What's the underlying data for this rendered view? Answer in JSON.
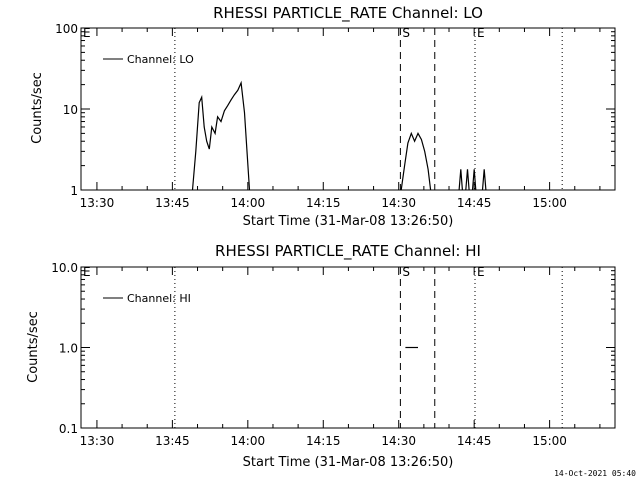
{
  "footer": {
    "timestamp": "14-Oct-2021 05:40"
  },
  "chart_data": [
    {
      "type": "line",
      "title": "RHESSI PARTICLE_RATE Channel: LO",
      "xlabel": "Start Time (31-Mar-08 13:26:50)",
      "ylabel": "Counts/sec",
      "yscale": "log",
      "ylim": [
        1,
        100
      ],
      "xlim": [
        "13:26:50",
        "15:13:00"
      ],
      "x_ticks": [
        "13:30",
        "13:45",
        "14:00",
        "14:15",
        "14:30",
        "14:45",
        "15:00"
      ],
      "y_ticks": [
        "1",
        "10",
        "100"
      ],
      "legend": {
        "placement": "top-left",
        "entries": [
          "Channel: LO"
        ]
      },
      "grid": false,
      "markers": [
        {
          "label": "E",
          "time": "13:26:50",
          "style": "none"
        },
        {
          "label": "",
          "time": "13:45:30",
          "style": "dotted"
        },
        {
          "label": "S",
          "time": "14:30:20",
          "style": "dashed"
        },
        {
          "label": "",
          "time": "14:37:10",
          "style": "dashed"
        },
        {
          "label": "E",
          "time": "14:45:10",
          "style": "dotted"
        },
        {
          "label": "",
          "time": "15:02:30",
          "style": "dotted"
        }
      ],
      "series": [
        {
          "name": "Channel: LO",
          "segments": [
            {
              "x": [
                "13:49:00",
                "13:49:40",
                "13:50:20",
                "13:50:50",
                "13:51:20",
                "13:51:50",
                "13:52:20",
                "13:52:50",
                "13:53:30",
                "13:54:00",
                "13:54:40",
                "13:55:20",
                "13:56:00",
                "13:56:40",
                "13:57:20",
                "13:58:00",
                "13:58:40",
                "13:59:20",
                "13:59:50",
                "14:00:20"
              ],
              "values": [
                1,
                3,
                12,
                14,
                6,
                4,
                3.2,
                6,
                5,
                8,
                7,
                9.5,
                11,
                13,
                15,
                17,
                21,
                9,
                3,
                1
              ]
            },
            {
              "x": [
                "14:30:30",
                "14:31:10",
                "14:31:50",
                "14:32:30",
                "14:33:10",
                "14:33:50",
                "14:34:30",
                "14:35:10",
                "14:35:50",
                "14:36:20"
              ],
              "values": [
                1,
                2,
                3.8,
                5,
                4,
                5,
                4.2,
                3,
                1.8,
                1
              ]
            },
            {
              "x": [
                "14:42:00",
                "14:42:20",
                "14:42:40"
              ],
              "values": [
                1,
                1.8,
                1
              ]
            },
            {
              "x": [
                "14:43:20",
                "14:43:40",
                "14:44:00"
              ],
              "values": [
                1,
                1.8,
                1
              ]
            },
            {
              "x": [
                "14:44:40",
                "14:45:00",
                "14:45:20"
              ],
              "values": [
                1,
                1.8,
                1
              ]
            },
            {
              "x": [
                "14:46:40",
                "14:47:00",
                "14:47:20"
              ],
              "values": [
                1,
                1.8,
                1
              ]
            }
          ]
        }
      ]
    },
    {
      "type": "line",
      "title": "RHESSI PARTICLE_RATE Channel: HI",
      "xlabel": "Start Time (31-Mar-08 13:26:50)",
      "ylabel": "Counts/sec",
      "yscale": "log",
      "ylim": [
        0.1,
        10
      ],
      "xlim": [
        "13:26:50",
        "15:13:00"
      ],
      "x_ticks": [
        "13:30",
        "13:45",
        "14:00",
        "14:15",
        "14:30",
        "14:45",
        "15:00"
      ],
      "y_ticks": [
        "0.1",
        "1.0",
        "10.0"
      ],
      "legend": {
        "placement": "top-left",
        "entries": [
          "Channel: HI"
        ]
      },
      "grid": false,
      "markers": [
        {
          "label": "E",
          "time": "13:26:50",
          "style": "none"
        },
        {
          "label": "",
          "time": "13:45:30",
          "style": "dotted"
        },
        {
          "label": "S",
          "time": "14:30:20",
          "style": "dashed"
        },
        {
          "label": "",
          "time": "14:37:10",
          "style": "dashed"
        },
        {
          "label": "E",
          "time": "14:45:10",
          "style": "dotted"
        },
        {
          "label": "",
          "time": "15:02:30",
          "style": "dotted"
        }
      ],
      "series": [
        {
          "name": "Channel: HI",
          "segments": [
            {
              "x": [
                "14:31:20",
                "14:33:50"
              ],
              "values": [
                1,
                1
              ]
            }
          ]
        }
      ]
    }
  ]
}
